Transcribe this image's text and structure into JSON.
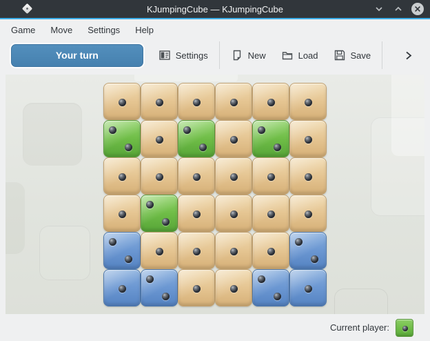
{
  "titlebar": {
    "title": "KJumpingCube — KJumpingCube"
  },
  "menubar": {
    "items": [
      "Game",
      "Move",
      "Settings",
      "Help"
    ]
  },
  "toolbar": {
    "turn_indicator": "Your turn",
    "settings_label": "Settings",
    "new_label": "New",
    "load_label": "Load",
    "save_label": "Save"
  },
  "board": {
    "rows": 6,
    "cols": 6,
    "cells": [
      [
        {
          "owner": "neutral",
          "points": 1
        },
        {
          "owner": "neutral",
          "points": 1
        },
        {
          "owner": "neutral",
          "points": 1
        },
        {
          "owner": "neutral",
          "points": 1
        },
        {
          "owner": "neutral",
          "points": 1
        },
        {
          "owner": "neutral",
          "points": 1
        }
      ],
      [
        {
          "owner": "green",
          "points": 2
        },
        {
          "owner": "neutral",
          "points": 1
        },
        {
          "owner": "green",
          "points": 2
        },
        {
          "owner": "neutral",
          "points": 1
        },
        {
          "owner": "green",
          "points": 2
        },
        {
          "owner": "neutral",
          "points": 1
        }
      ],
      [
        {
          "owner": "neutral",
          "points": 1
        },
        {
          "owner": "neutral",
          "points": 1
        },
        {
          "owner": "neutral",
          "points": 1
        },
        {
          "owner": "neutral",
          "points": 1
        },
        {
          "owner": "neutral",
          "points": 1
        },
        {
          "owner": "neutral",
          "points": 1
        }
      ],
      [
        {
          "owner": "neutral",
          "points": 1
        },
        {
          "owner": "green",
          "points": 2
        },
        {
          "owner": "neutral",
          "points": 1
        },
        {
          "owner": "neutral",
          "points": 1
        },
        {
          "owner": "neutral",
          "points": 1
        },
        {
          "owner": "neutral",
          "points": 1
        }
      ],
      [
        {
          "owner": "blue",
          "points": 2
        },
        {
          "owner": "neutral",
          "points": 1
        },
        {
          "owner": "neutral",
          "points": 1
        },
        {
          "owner": "neutral",
          "points": 1
        },
        {
          "owner": "neutral",
          "points": 1
        },
        {
          "owner": "blue",
          "points": 2
        }
      ],
      [
        {
          "owner": "blue",
          "points": 1
        },
        {
          "owner": "blue",
          "points": 2
        },
        {
          "owner": "neutral",
          "points": 1
        },
        {
          "owner": "neutral",
          "points": 1
        },
        {
          "owner": "blue",
          "points": 2
        },
        {
          "owner": "blue",
          "points": 1
        }
      ]
    ]
  },
  "statusbar": {
    "current_player_label": "Current player:",
    "current_player": "green"
  },
  "colors": {
    "accent": "#3daee9",
    "titlebar_bg": "#31363b",
    "turn_button_blue": "#4a86b4",
    "neutral_cube": "#e2bd85",
    "green_cube": "#6fbd47",
    "blue_cube": "#6b97d2"
  },
  "icons": {
    "window": "dice-icon",
    "minimize": "chevron-down-icon",
    "maximize": "chevron-up-icon",
    "close": "close-icon",
    "settings": "configure-icon",
    "new": "document-new-icon",
    "load": "folder-open-icon",
    "save": "floppy-disk-icon",
    "overflow": "chevron-right-icon"
  }
}
